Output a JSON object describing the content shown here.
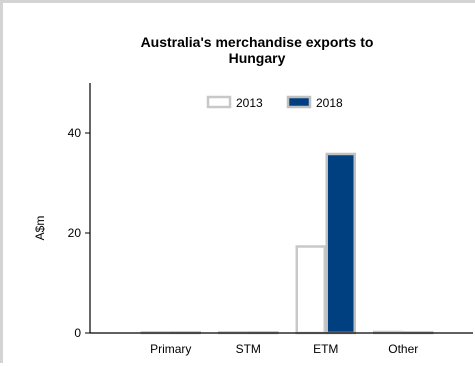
{
  "chart_data": {
    "type": "bar",
    "title": "Australia's merchandise exports to Hungary",
    "title_lines": [
      "Australia's merchandise exports to",
      "Hungary"
    ],
    "xlabel": "",
    "ylabel": "A$m",
    "ylim": [
      0,
      50
    ],
    "yticks": [
      0,
      20,
      40
    ],
    "categories": [
      "Primary",
      "STM",
      "ETM",
      "Other"
    ],
    "legend_position": "top-center",
    "grid": false,
    "series": [
      {
        "name": "2013",
        "values": [
          0,
          0,
          17.3,
          0.2
        ],
        "fill": "#ffffff",
        "stroke": "#c8c8c8"
      },
      {
        "name": "2018",
        "values": [
          0,
          0,
          35.8,
          0.1
        ],
        "fill": "#003f80",
        "stroke": "#c0c0c0"
      }
    ]
  }
}
